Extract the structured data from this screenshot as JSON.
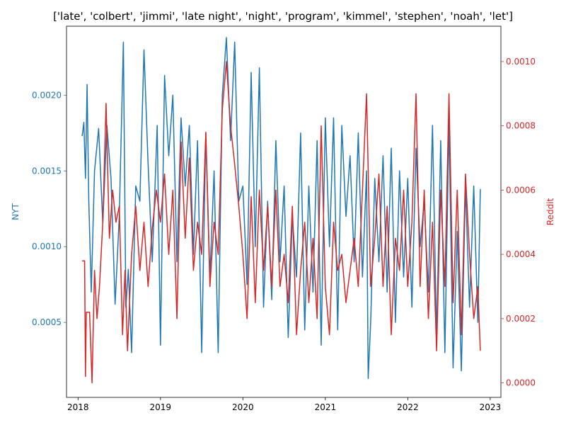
{
  "chart_data": {
    "type": "line",
    "title": "['late', 'colbert', 'jimmi', 'late night', 'night', 'program', 'kimmel', 'stephen', 'noah', 'let']",
    "xlabel": "",
    "grid": false,
    "x_ticks": [
      "2018",
      "2019",
      "2020",
      "2021",
      "2022",
      "2023"
    ],
    "xlim": [
      2017.86,
      2023.13
    ],
    "left_axis": {
      "label": "NYT",
      "color": "#1f77b4",
      "ylim": [
        5e-06,
        0.002455
      ],
      "ticks": [
        0.0005,
        0.001,
        0.0015,
        0.002
      ],
      "tick_labels": [
        "0.0005",
        "0.0010",
        "0.0015",
        "0.0020"
      ]
    },
    "right_axis": {
      "label": "Reddit",
      "color": "#d62728",
      "ylim": [
        -4.5e-05,
        0.00111
      ],
      "ticks": [
        0.0,
        0.0002,
        0.0004,
        0.0006,
        0.0008,
        0.001
      ],
      "tick_labels": [
        "0.0000",
        "0.0002",
        "0.0004",
        "0.0006",
        "0.0008",
        "0.0010"
      ]
    },
    "series": [
      {
        "name": "NYT",
        "axis": "left",
        "color": "#1f77b4",
        "x": [
          2018.05,
          2018.07,
          2018.09,
          2018.11,
          2018.13,
          2018.16,
          2018.2,
          2018.25,
          2018.3,
          2018.35,
          2018.4,
          2018.45,
          2018.5,
          2018.55,
          2018.58,
          2018.61,
          2018.65,
          2018.7,
          2018.75,
          2018.8,
          2018.85,
          2018.9,
          2018.96,
          2019.0,
          2019.05,
          2019.1,
          2019.15,
          2019.2,
          2019.25,
          2019.3,
          2019.35,
          2019.4,
          2019.45,
          2019.5,
          2019.55,
          2019.6,
          2019.65,
          2019.7,
          2019.75,
          2019.8,
          2019.85,
          2019.9,
          2019.95,
          2020.0,
          2020.05,
          2020.1,
          2020.15,
          2020.2,
          2020.25,
          2020.3,
          2020.35,
          2020.4,
          2020.45,
          2020.5,
          2020.55,
          2020.6,
          2020.65,
          2020.7,
          2020.75,
          2020.8,
          2020.85,
          2020.9,
          2020.95,
          2021.0,
          2021.05,
          2021.1,
          2021.15,
          2021.2,
          2021.25,
          2021.3,
          2021.35,
          2021.4,
          2021.45,
          2021.5,
          2021.52,
          2021.55,
          2021.6,
          2021.65,
          2021.7,
          2021.75,
          2021.8,
          2021.85,
          2021.9,
          2021.95,
          2022.0,
          2022.05,
          2022.1,
          2022.15,
          2022.2,
          2022.25,
          2022.3,
          2022.35,
          2022.4,
          2022.45,
          2022.5,
          2022.55,
          2022.6,
          2022.65,
          2022.7,
          2022.75,
          2022.8,
          2022.85,
          2022.88
        ],
        "values": [
          0.00173,
          0.00182,
          0.00145,
          0.00207,
          0.0013,
          0.0007,
          0.0015,
          0.00178,
          0.00115,
          0.0018,
          0.00145,
          0.00062,
          0.0012,
          0.00235,
          0.0006,
          0.00085,
          0.0003,
          0.0014,
          0.0013,
          0.0023,
          0.00155,
          0.0009,
          0.0018,
          0.00035,
          0.00213,
          0.0016,
          0.002,
          0.0009,
          0.00185,
          0.0014,
          0.0018,
          0.00095,
          0.0017,
          0.0003,
          0.00175,
          0.0008,
          0.0015,
          0.0003,
          0.002,
          0.00238,
          0.0017,
          0.00235,
          0.0013,
          0.0014,
          0.00075,
          0.00215,
          0.001,
          0.00218,
          0.0006,
          0.0013,
          0.00065,
          0.0017,
          0.0009,
          0.0014,
          0.0004,
          0.0012,
          0.0008,
          0.00175,
          0.00045,
          0.0014,
          0.0007,
          0.0017,
          0.00035,
          0.00185,
          0.001,
          0.00185,
          0.00045,
          0.0018,
          0.0012,
          0.0016,
          0.0009,
          0.00175,
          0.0008,
          0.0015,
          0.00013,
          0.0005,
          0.00145,
          0.0009,
          0.0016,
          0.0007,
          0.00165,
          0.0005,
          0.0015,
          0.0008,
          0.00145,
          0.0006,
          0.00165,
          0.001,
          0.0013,
          0.0007,
          0.0018,
          0.0004,
          0.0017,
          0.0003,
          0.00182,
          0.0002,
          0.0011,
          0.00018,
          0.0014,
          0.0006,
          0.0014,
          0.0005,
          0.00138
        ]
      },
      {
        "name": "Reddit",
        "axis": "right",
        "color": "#d62728",
        "x": [
          2018.05,
          2018.08,
          2018.09,
          2018.1,
          2018.14,
          2018.17,
          2018.2,
          2018.23,
          2018.26,
          2018.3,
          2018.34,
          2018.38,
          2018.42,
          2018.46,
          2018.5,
          2018.54,
          2018.57,
          2018.6,
          2018.65,
          2018.7,
          2018.75,
          2018.8,
          2018.85,
          2018.9,
          2018.95,
          2019.0,
          2019.05,
          2019.1,
          2019.15,
          2019.2,
          2019.25,
          2019.3,
          2019.35,
          2019.4,
          2019.45,
          2019.5,
          2019.55,
          2019.6,
          2019.65,
          2019.7,
          2019.75,
          2019.8,
          2019.85,
          2019.9,
          2019.95,
          2020.0,
          2020.05,
          2020.1,
          2020.15,
          2020.2,
          2020.25,
          2020.3,
          2020.35,
          2020.4,
          2020.45,
          2020.5,
          2020.55,
          2020.6,
          2020.65,
          2020.7,
          2020.75,
          2020.8,
          2020.85,
          2020.9,
          2020.95,
          2021.0,
          2021.05,
          2021.1,
          2021.15,
          2021.2,
          2021.25,
          2021.3,
          2021.35,
          2021.4,
          2021.45,
          2021.5,
          2021.55,
          2021.6,
          2021.65,
          2021.7,
          2021.75,
          2021.8,
          2021.85,
          2021.9,
          2021.95,
          2022.0,
          2022.05,
          2022.1,
          2022.15,
          2022.2,
          2022.25,
          2022.3,
          2022.35,
          2022.4,
          2022.45,
          2022.5,
          2022.55,
          2022.6,
          2022.65,
          2022.7,
          2022.75,
          2022.8,
          2022.85,
          2022.88
        ],
        "values": [
          0.00038,
          0.00038,
          2e-05,
          0.00022,
          0.00022,
          0.0,
          0.00035,
          0.0002,
          0.0003,
          0.0005,
          0.00087,
          0.00045,
          0.0006,
          0.0005,
          0.00055,
          0.00015,
          0.00035,
          0.0001,
          0.0004,
          0.00055,
          0.00035,
          0.0005,
          0.0003,
          0.00048,
          0.0006,
          0.0005,
          0.00065,
          0.0004,
          0.0006,
          0.0002,
          0.00075,
          0.00045,
          0.0007,
          0.00035,
          0.0005,
          0.0004,
          0.00078,
          0.0003,
          0.0005,
          0.0004,
          0.00085,
          0.001,
          0.0008,
          0.00068,
          0.00055,
          0.0004,
          0.0002,
          0.00058,
          0.00025,
          0.0006,
          0.00035,
          0.00055,
          0.0003,
          0.0006,
          0.0003,
          0.0004,
          0.00025,
          0.00055,
          0.00015,
          0.00035,
          0.0005,
          0.00025,
          0.00045,
          0.0002,
          0.0008,
          0.0003,
          0.00015,
          0.0005,
          0.00035,
          0.0004,
          0.00025,
          0.00035,
          0.00045,
          0.0003,
          0.0006,
          0.0009,
          0.0003,
          0.00045,
          0.00065,
          0.0003,
          0.00055,
          0.00015,
          0.00045,
          0.00035,
          0.0006,
          0.0003,
          0.0005,
          0.0009,
          0.0003,
          0.0006,
          0.0002,
          0.0005,
          0.0001,
          0.0006,
          0.0003,
          0.0009,
          0.00025,
          0.0006,
          0.00015,
          0.00065,
          0.0004,
          0.0002,
          0.0003,
          0.0001
        ]
      }
    ]
  }
}
